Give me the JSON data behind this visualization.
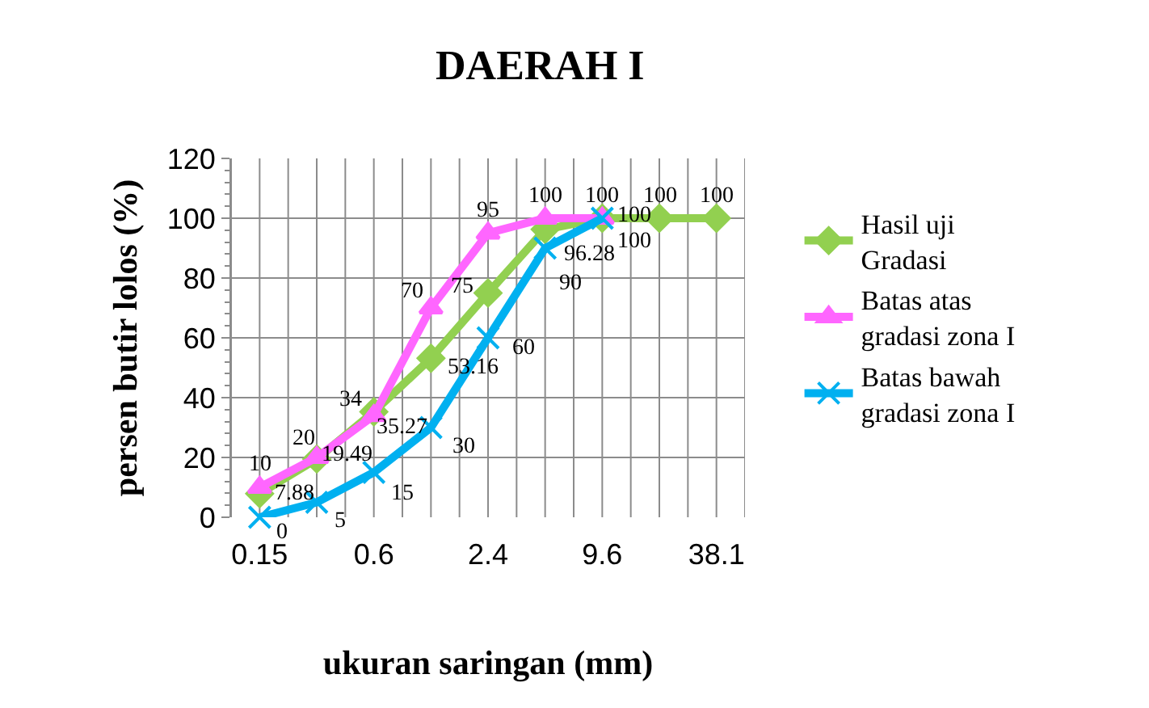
{
  "chart_data": {
    "type": "line",
    "title": "DAERAH I",
    "xlabel": "ukuran saringan (mm)",
    "ylabel": "persen butir lolos (%)",
    "categories": [
      "0.15",
      null,
      "0.6",
      null,
      "2.4",
      null,
      "9.6",
      null,
      "38.1"
    ],
    "series": [
      {
        "name": "Hasil uji Gradasi",
        "color": "#92d050",
        "marker": "diamond",
        "values": [
          7.88,
          19.49,
          35.27,
          53.16,
          75,
          96.28,
          100,
          100,
          100
        ]
      },
      {
        "name": "Batas atas gradasi zona I",
        "color": "#ff66ff",
        "marker": "triangle",
        "values": [
          10,
          20,
          34,
          70,
          95,
          100,
          100,
          null,
          null
        ]
      },
      {
        "name": "Batas bawah gradasi zona I",
        "color": "#00b0f0",
        "marker": "cross",
        "values": [
          0,
          5,
          15,
          30,
          60,
          90,
          100,
          null,
          null
        ]
      }
    ],
    "ylim": [
      0,
      120
    ],
    "yticks": [
      0,
      20,
      40,
      60,
      80,
      100,
      120
    ],
    "grid": true,
    "legend": "right",
    "data_labels": true
  }
}
